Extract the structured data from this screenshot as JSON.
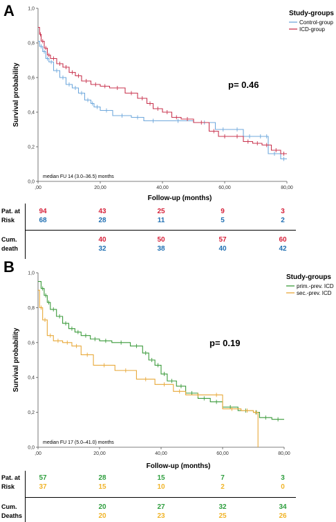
{
  "panels": [
    {
      "letter": "A",
      "p_value": "p= 0.46",
      "median_fu": "median FU 14 (3.0–36.5) months",
      "risk_table": {
        "risk_label_1": "Pat. at",
        "risk_label_2": "Risk",
        "death_label_1": "Cum.",
        "death_label_2": "death",
        "at_risk_g1": [
          "94",
          "43",
          "25",
          "9",
          "3"
        ],
        "at_risk_g2": [
          "68",
          "28",
          "11",
          "5",
          "2"
        ],
        "deaths_g1": [
          "",
          "40",
          "50",
          "57",
          "60"
        ],
        "deaths_g2": [
          "",
          "32",
          "38",
          "40",
          "42"
        ],
        "g1_color": "#d6213a",
        "g2_color": "#1f6fb2"
      }
    },
    {
      "letter": "B",
      "p_value": "p= 0.19",
      "median_fu": "median FU 17 (5.0–41.0) months",
      "risk_table": {
        "risk_label_1": "Pat. at",
        "risk_label_2": "Risk",
        "death_label_1": "Cum.",
        "death_label_2": "Deaths",
        "at_risk_g1": [
          "57",
          "28",
          "15",
          "7",
          "3"
        ],
        "at_risk_g2": [
          "37",
          "15",
          "10",
          "2",
          "0"
        ],
        "deaths_g1": [
          "",
          "20",
          "27",
          "32",
          "34"
        ],
        "deaths_g2": [
          "",
          "20",
          "23",
          "25",
          "26"
        ],
        "g1_color": "#2e9e3e",
        "g2_color": "#f0b429"
      }
    }
  ],
  "chart_data": [
    {
      "type": "line",
      "step": true,
      "title": "",
      "xlabel": "Follow-up (months)",
      "ylabel": "Survival probability",
      "xlim": [
        0,
        80
      ],
      "ylim": [
        0,
        1.0
      ],
      "x_ticks": [
        ",00",
        "20,00",
        "40,00",
        "60,00",
        "80,00"
      ],
      "y_ticks": [
        "0,0",
        "0,2",
        "0,4",
        "0,6",
        "0,8",
        "1,0"
      ],
      "legend_title": "Study-groups",
      "legend_position": "top-right",
      "series": [
        {
          "name": "Control-group",
          "color": "#6fa8dc",
          "x": [
            0,
            0.5,
            1.5,
            2.5,
            3.5,
            5,
            7,
            9,
            11,
            13,
            15,
            17,
            18,
            20,
            24,
            30,
            34,
            40,
            50,
            57,
            62,
            66,
            70,
            73,
            74,
            78,
            80
          ],
          "y": [
            0.81,
            0.78,
            0.75,
            0.71,
            0.69,
            0.64,
            0.6,
            0.56,
            0.54,
            0.51,
            0.47,
            0.45,
            0.43,
            0.41,
            0.38,
            0.37,
            0.35,
            0.35,
            0.34,
            0.3,
            0.3,
            0.26,
            0.26,
            0.26,
            0.16,
            0.13,
            0.13
          ]
        },
        {
          "name": "ICD-group",
          "color": "#c8344f",
          "x": [
            0,
            0.5,
            1,
            2,
            3,
            4,
            6,
            8,
            10,
            12,
            14,
            17,
            20,
            23,
            28,
            32,
            35,
            37,
            40,
            43,
            46,
            50,
            55,
            58,
            62,
            66,
            69,
            72,
            75,
            78,
            80
          ],
          "y": [
            0.89,
            0.85,
            0.81,
            0.77,
            0.73,
            0.71,
            0.68,
            0.66,
            0.63,
            0.61,
            0.58,
            0.56,
            0.55,
            0.54,
            0.51,
            0.48,
            0.45,
            0.42,
            0.4,
            0.37,
            0.36,
            0.34,
            0.29,
            0.26,
            0.26,
            0.23,
            0.22,
            0.21,
            0.18,
            0.16,
            0.16
          ]
        }
      ]
    },
    {
      "type": "line",
      "step": true,
      "title": "",
      "xlabel": "Follow-up (months)",
      "ylabel": "Survival probability",
      "xlim": [
        0,
        80
      ],
      "ylim": [
        0,
        1.0
      ],
      "x_ticks": [
        ",00",
        "20,00",
        "40,00",
        "60,00",
        "80,00"
      ],
      "y_ticks": [
        "0,0",
        "0,2",
        "0,4",
        "0,6",
        "0,8",
        "1,0"
      ],
      "legend_title": "Study-groups",
      "legend_position": "top-right",
      "series": [
        {
          "name": "prim.-prev. ICD",
          "color": "#3a9a3a",
          "x": [
            0,
            1,
            2,
            3,
            4,
            6,
            8,
            10,
            12,
            14,
            17,
            20,
            24,
            30,
            34,
            36,
            38,
            40,
            42,
            45,
            48,
            52,
            56,
            60,
            65,
            70,
            72,
            76,
            80
          ],
          "y": [
            0.95,
            0.91,
            0.87,
            0.83,
            0.79,
            0.75,
            0.71,
            0.68,
            0.66,
            0.64,
            0.62,
            0.61,
            0.6,
            0.58,
            0.54,
            0.5,
            0.47,
            0.42,
            0.38,
            0.35,
            0.31,
            0.28,
            0.26,
            0.23,
            0.21,
            0.2,
            0.17,
            0.16,
            0.16
          ]
        },
        {
          "name": "sec.-prev. ICD",
          "color": "#e8a838",
          "x": [
            0,
            0.5,
            1.5,
            3,
            5,
            8,
            11,
            14,
            18,
            25,
            32,
            38,
            44,
            48,
            56,
            60,
            66,
            70,
            71.5
          ],
          "y": [
            0.9,
            0.8,
            0.73,
            0.64,
            0.61,
            0.6,
            0.58,
            0.53,
            0.47,
            0.44,
            0.39,
            0.36,
            0.32,
            0.3,
            0.3,
            0.22,
            0.21,
            0.2,
            0.0
          ]
        }
      ]
    }
  ]
}
